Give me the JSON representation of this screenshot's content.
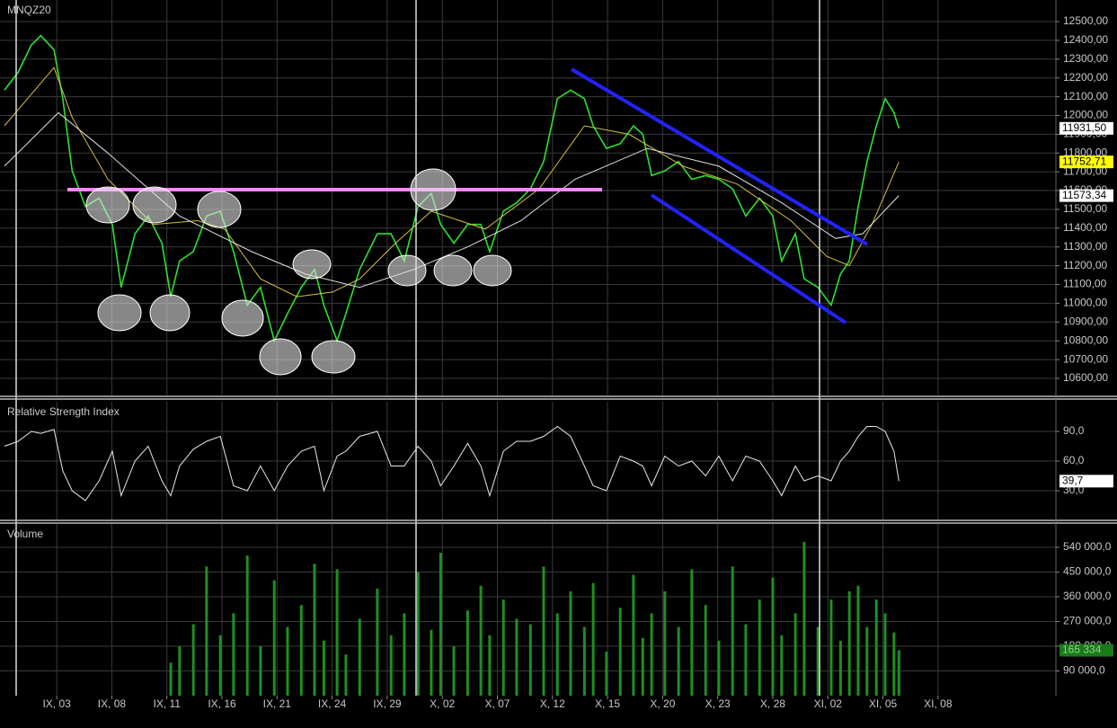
{
  "chart_data": [
    {
      "type": "line",
      "title": "MNQZ20",
      "ylim": [
        10509,
        12615
      ],
      "yticks": [
        {
          "value": 10600,
          "label": "10600,00"
        },
        {
          "value": 10700,
          "label": "10700,00"
        },
        {
          "value": 10800,
          "label": "10800,00"
        },
        {
          "value": 10900,
          "label": "10900,00"
        },
        {
          "value": 11000,
          "label": "11000,00"
        },
        {
          "value": 11100,
          "label": "11100,00"
        },
        {
          "value": 11200,
          "label": "11200,00"
        },
        {
          "value": 11300,
          "label": "11300,00"
        },
        {
          "value": 11400,
          "label": "11400,00"
        },
        {
          "value": 11500,
          "label": "11500,00"
        },
        {
          "value": 11600,
          "label": "11600,00"
        },
        {
          "value": 11700,
          "label": "11700,00"
        },
        {
          "value": 11800,
          "label": "11800,00"
        },
        {
          "value": 11900,
          "label": "11900,00"
        },
        {
          "value": 12000,
          "label": "12000,00"
        },
        {
          "value": 12100,
          "label": "12100,00"
        },
        {
          "value": 12200,
          "label": "12200,00"
        },
        {
          "value": 12300,
          "label": "12300,00"
        },
        {
          "value": 12400,
          "label": "12400,00"
        },
        {
          "value": 12500,
          "label": "12500,00"
        }
      ],
      "grid": true,
      "series": [
        {
          "color": "#2ee02e",
          "x": [
            -0.95,
            -0.7,
            -0.46,
            -0.29,
            -0.05,
            0.11,
            0.28,
            0.52,
            0.77,
            1.01,
            1.17,
            1.42,
            1.66,
            1.91,
            2.07,
            2.23,
            2.48,
            2.72,
            2.97,
            3.21,
            3.46,
            3.7,
            3.95,
            4.19,
            4.44,
            4.68,
            4.85,
            5.09,
            5.25,
            5.5,
            5.82,
            6.07,
            6.31,
            6.56,
            6.8,
            6.97,
            7.21,
            7.46,
            7.7,
            7.86,
            8.11,
            8.35,
            8.6,
            8.84,
            9.09,
            9.33,
            9.58,
            9.74,
            9.98,
            10.23,
            10.47,
            10.64,
            10.8,
            11.04,
            11.29,
            11.53,
            11.78,
            12.02,
            12.27,
            12.51,
            12.76,
            13.0,
            13.16,
            13.41,
            13.57,
            13.82,
            14.06,
            14.23,
            14.39,
            14.55,
            14.71,
            14.88,
            15.04,
            15.2,
            15.29
          ],
          "values": [
            12135,
            12230,
            12375,
            12425,
            12350,
            12090,
            11705,
            11515,
            11560,
            11420,
            11085,
            11370,
            11465,
            11320,
            11035,
            11225,
            11275,
            11465,
            11490,
            11275,
            10990,
            11085,
            10800,
            10945,
            11085,
            11180,
            10990,
            10800,
            10945,
            11180,
            11370,
            11370,
            11225,
            11515,
            11585,
            11420,
            11320,
            11420,
            11420,
            11275,
            11490,
            11535,
            11610,
            11755,
            12090,
            12135,
            12090,
            11945,
            11825,
            11850,
            11945,
            11900,
            11680,
            11705,
            11755,
            11660,
            11680,
            11660,
            11610,
            11465,
            11560,
            11465,
            11225,
            11370,
            11130,
            11085,
            10990,
            11155,
            11225,
            11515,
            11755,
            11945,
            12090,
            12015,
            11931.5
          ]
        },
        {
          "color": "#d8c040",
          "x": [
            -0.95,
            -0.05,
            0.28,
            0.93,
            1.75,
            2.56,
            3.05,
            3.7,
            4.36,
            5.01,
            5.5,
            6.15,
            6.8,
            7.78,
            8.76,
            9.58,
            10.39,
            11.37,
            12.35,
            13.33,
            13.98,
            14.39,
            14.8,
            15.29
          ],
          "values": [
            11945,
            12255,
            11990,
            11660,
            11420,
            11440,
            11395,
            11130,
            11035,
            11060,
            11130,
            11320,
            11490,
            11395,
            11610,
            11945,
            11900,
            11730,
            11635,
            11440,
            11250,
            11200,
            11420,
            11752.71
          ]
        },
        {
          "color": "#e0e0e0",
          "x": [
            -0.95,
            0.03,
            0.93,
            2.23,
            3.54,
            4.52,
            5.5,
            6.48,
            7.46,
            8.43,
            9.41,
            10.72,
            12.02,
            13.16,
            14.14,
            14.63,
            15.29
          ],
          "values": [
            11730,
            12015,
            11800,
            11465,
            11275,
            11155,
            11085,
            11180,
            11300,
            11440,
            11660,
            11825,
            11730,
            11535,
            11345,
            11370,
            11573.34
          ]
        }
      ],
      "last_labels": [
        {
          "value": 11931.5,
          "label": "11931,50",
          "color": "#ffffff"
        },
        {
          "value": 11752.71,
          "label": "11752,71",
          "color": "#ffff00"
        },
        {
          "value": 11573.34,
          "label": "11573,34",
          "color": "#ffffff"
        }
      ]
    },
    {
      "type": "line",
      "title": "Relative Strength Index",
      "ylim": [
        0,
        120
      ],
      "yticks": [
        {
          "value": 30,
          "label": "30,0"
        },
        {
          "value": 60,
          "label": "60,0"
        },
        {
          "value": 90,
          "label": "90,0"
        }
      ],
      "grid": true,
      "series": [
        {
          "color": "#e8e8e8",
          "x": [
            -0.95,
            -0.7,
            -0.46,
            -0.29,
            -0.05,
            0.11,
            0.28,
            0.52,
            0.77,
            1.01,
            1.17,
            1.42,
            1.66,
            1.91,
            2.07,
            2.23,
            2.48,
            2.72,
            2.97,
            3.21,
            3.46,
            3.7,
            3.95,
            4.19,
            4.44,
            4.68,
            4.85,
            5.09,
            5.25,
            5.5,
            5.82,
            6.07,
            6.31,
            6.56,
            6.8,
            6.97,
            7.21,
            7.46,
            7.7,
            7.86,
            8.11,
            8.35,
            8.6,
            8.84,
            9.09,
            9.33,
            9.58,
            9.74,
            9.98,
            10.23,
            10.47,
            10.64,
            10.8,
            11.04,
            11.29,
            11.53,
            11.78,
            12.02,
            12.27,
            12.51,
            12.76,
            13.0,
            13.16,
            13.41,
            13.57,
            13.82,
            14.06,
            14.23,
            14.39,
            14.55,
            14.71,
            14.88,
            15.04,
            15.2,
            15.29
          ],
          "values": [
            75,
            80,
            90,
            88,
            92,
            50,
            30,
            20,
            40,
            70,
            25,
            60,
            75,
            40,
            25,
            55,
            72,
            80,
            85,
            35,
            30,
            55,
            30,
            55,
            70,
            75,
            30,
            65,
            70,
            85,
            90,
            55,
            55,
            75,
            60,
            35,
            55,
            78,
            55,
            25,
            70,
            80,
            80,
            85,
            95,
            85,
            55,
            35,
            30,
            65,
            60,
            55,
            35,
            65,
            55,
            60,
            45,
            65,
            40,
            65,
            60,
            40,
            25,
            55,
            40,
            45,
            40,
            60,
            70,
            85,
            95,
            95,
            90,
            70,
            39.7
          ]
        }
      ],
      "last_labels": [
        {
          "value": 39.7,
          "label": "39,7",
          "color": "#ffffff"
        }
      ]
    },
    {
      "type": "bar",
      "title": "Volume",
      "ylim": [
        0,
        625000
      ],
      "yticks": [
        {
          "value": 90000,
          "label": "90 000,0"
        },
        {
          "value": 180000,
          "label": "180 000,0"
        },
        {
          "value": 270000,
          "label": "270 000,0"
        },
        {
          "value": 360000,
          "label": "360 000,0"
        },
        {
          "value": 450000,
          "label": "450 000,0"
        },
        {
          "value": 540000,
          "label": "540 000,0"
        }
      ],
      "grid": true,
      "xlim": [
        -1.03,
        18.14
      ],
      "xticks": [
        {
          "value": 0,
          "label": "IX, 03"
        },
        {
          "value": 1,
          "label": "IX, 08"
        },
        {
          "value": 2,
          "label": "IX, 11"
        },
        {
          "value": 3,
          "label": "IX, 16"
        },
        {
          "value": 4,
          "label": "IX, 21"
        },
        {
          "value": 5,
          "label": "IX, 24"
        },
        {
          "value": 6,
          "label": "IX, 29"
        },
        {
          "value": 7,
          "label": "X, 02"
        },
        {
          "value": 8,
          "label": "X, 07"
        },
        {
          "value": 9,
          "label": "X, 12"
        },
        {
          "value": 10,
          "label": "X, 15"
        },
        {
          "value": 11,
          "label": "X, 20"
        },
        {
          "value": 12,
          "label": "X, 23"
        },
        {
          "value": 13,
          "label": "X, 28"
        },
        {
          "value": 14,
          "label": "XI, 02"
        },
        {
          "value": 15,
          "label": "XI, 05"
        },
        {
          "value": 16,
          "label": "XI, 08"
        }
      ],
      "series": [
        {
          "color": "#1f8f1f",
          "x": [
            2.07,
            2.23,
            2.48,
            2.72,
            2.97,
            3.21,
            3.46,
            3.7,
            3.95,
            4.19,
            4.44,
            4.68,
            4.85,
            5.09,
            5.25,
            5.5,
            5.82,
            6.07,
            6.31,
            6.56,
            6.8,
            6.97,
            7.21,
            7.46,
            7.7,
            7.86,
            8.11,
            8.35,
            8.6,
            8.84,
            9.09,
            9.33,
            9.58,
            9.74,
            9.98,
            10.23,
            10.47,
            10.64,
            10.8,
            11.04,
            11.29,
            11.53,
            11.78,
            12.02,
            12.27,
            12.51,
            12.76,
            13.0,
            13.16,
            13.41,
            13.57,
            13.82,
            14.06,
            14.23,
            14.39,
            14.55,
            14.71,
            14.88,
            15.04,
            15.2,
            15.29
          ],
          "values": [
            120000,
            180000,
            260000,
            470000,
            220000,
            300000,
            510000,
            180000,
            420000,
            250000,
            330000,
            480000,
            200000,
            460000,
            150000,
            280000,
            390000,
            220000,
            300000,
            450000,
            240000,
            520000,
            180000,
            310000,
            400000,
            220000,
            350000,
            280000,
            260000,
            470000,
            300000,
            380000,
            250000,
            410000,
            160000,
            320000,
            440000,
            210000,
            300000,
            380000,
            250000,
            460000,
            330000,
            200000,
            470000,
            260000,
            350000,
            430000,
            220000,
            300000,
            560000,
            250000,
            350000,
            200000,
            380000,
            400000,
            250000,
            350000,
            300000,
            230000,
            165334
          ]
        }
      ],
      "last_labels": [
        {
          "value": 165334,
          "label": "165 334",
          "color": "#1a7a1a"
        }
      ]
    }
  ]
}
